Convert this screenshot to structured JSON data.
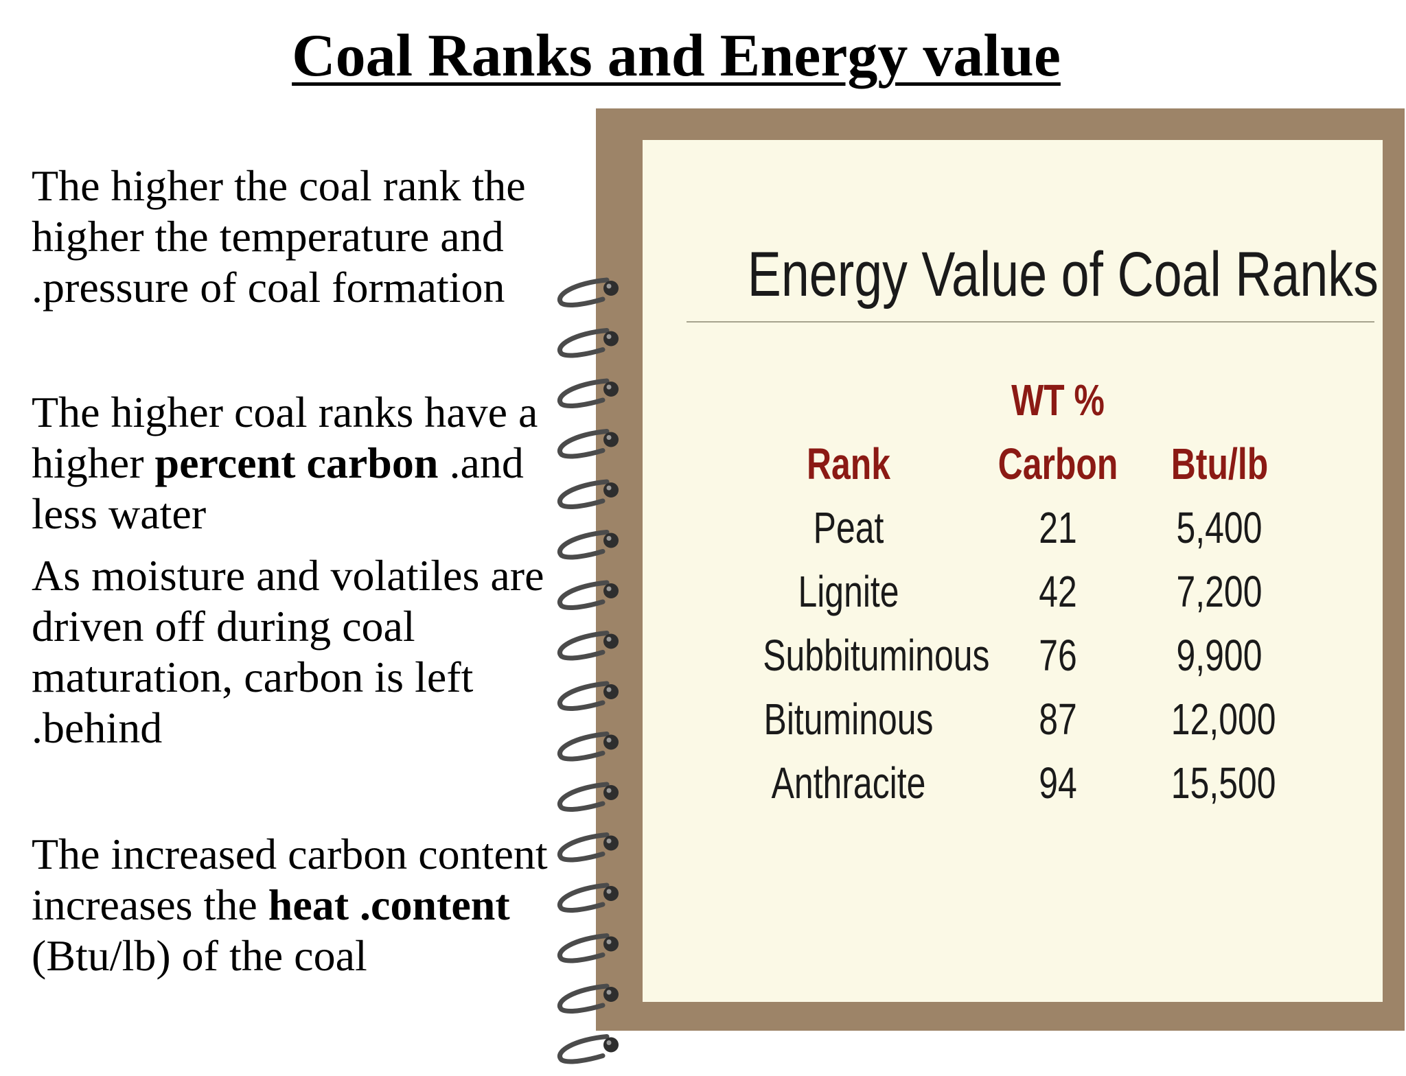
{
  "title": "Coal Ranks and Energy value",
  "paragraphs": {
    "p1": "The higher the coal rank the higher the temperature and .pressure of coal formation",
    "p2": {
      "pre": "The higher coal ranks have a higher ",
      "bold": "percent carbon",
      "post": " .and less water"
    },
    "p3": "As moisture and volatiles are driven off during coal maturation, carbon is left .behind",
    "p4": {
      "pre": "The increased carbon content increases the ",
      "bold": "heat .content",
      "post": " (Btu/lb) of the coal"
    }
  },
  "notebook": {
    "title": "Energy Value of Coal Ranks",
    "table": {
      "header_top": {
        "carbon": "WT %"
      },
      "headers": {
        "rank": "Rank",
        "carbon": "Carbon",
        "btu": "Btu/lb"
      },
      "rows": [
        {
          "rank": "Peat",
          "carbon": "21",
          "btu": "5,400"
        },
        {
          "rank": "Lignite",
          "carbon": "42",
          "btu": "7,200"
        },
        {
          "rank": "Subbituminous",
          "carbon": "76",
          "btu": "9,900"
        },
        {
          "rank": "Bituminous",
          "carbon": "87",
          "btu": "12,000"
        },
        {
          "rank": "Anthracite",
          "carbon": "94",
          "btu": "15,500"
        }
      ]
    },
    "colors": {
      "frame": "#9d8468",
      "paper": "#fbf9e6",
      "header": "#8b1a14"
    }
  }
}
